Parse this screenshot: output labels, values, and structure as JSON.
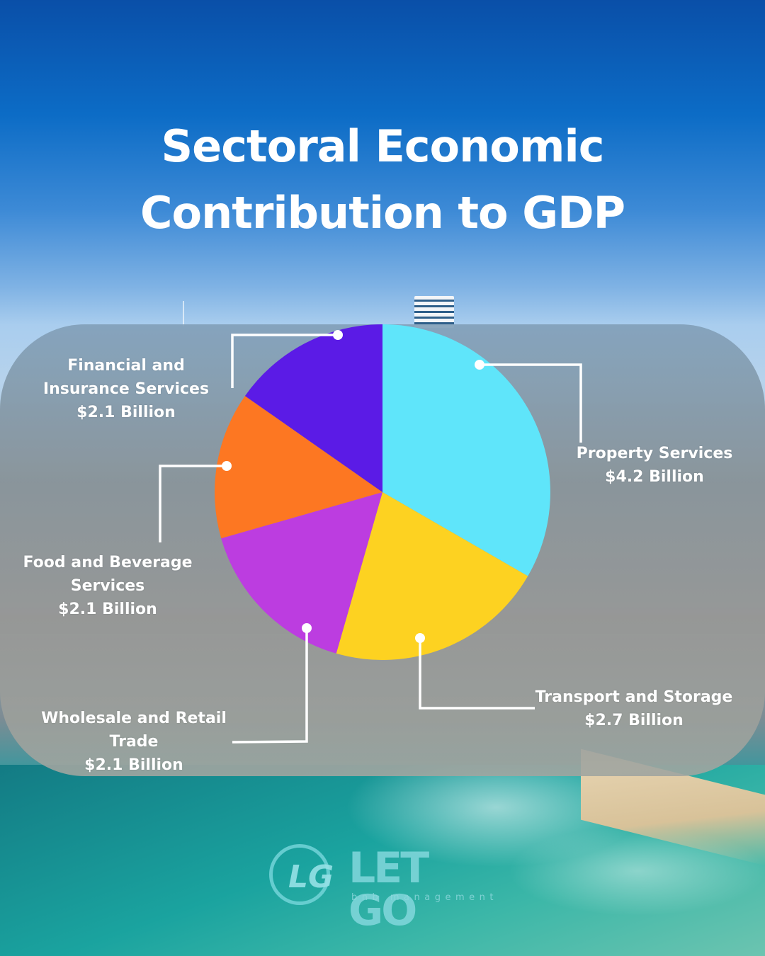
{
  "header": {
    "title_line1": "Sectoral Economic",
    "title_line2": "Contribution to GDP"
  },
  "labels": {
    "property": {
      "name": "Property Services",
      "value": "$4.2 Billion"
    },
    "transport": {
      "name": "Transport and Storage",
      "value": "$2.7 Billion"
    },
    "wholesale": {
      "name_line1": "Wholesale and Retail",
      "name_line2": "Trade",
      "value": "$2.1 Billion"
    },
    "food": {
      "name_line1": "Food and Beverage",
      "name_line2": "Services",
      "value": "$2.1 Billion"
    },
    "financial": {
      "name_line1": "Financial and",
      "name_line2": "Insurance Services",
      "value": "$2.1 Billion"
    }
  },
  "logo": {
    "icon": "lg-monogram-icon",
    "glyph": "LG",
    "name": "LET GO",
    "tagline": "bnb management"
  },
  "colors": {
    "property": "#5fe5fa",
    "transport": "#fdd221",
    "wholesale": "#bc3de0",
    "food": "#fd7722",
    "financial": "#5b1be6"
  },
  "chart_data": {
    "type": "pie",
    "title": "Sectoral Economic Contribution to GDP",
    "categories": [
      "Property Services",
      "Transport and Storage",
      "Wholesale and Retail Trade",
      "Food and Beverage Services",
      "Financial and Insurance Services"
    ],
    "values": [
      4.2,
      2.7,
      2.1,
      2.1,
      2.1
    ],
    "unit": "Billion USD ($)",
    "value_labels": [
      "$4.2 Billion",
      "$2.7 Billion",
      "$2.1 Billion",
      "$2.1 Billion",
      "$2.1 Billion"
    ],
    "colors": [
      "#5fe5fa",
      "#fdd221",
      "#bc3de0",
      "#fd7722",
      "#5b1be6"
    ],
    "start_angle": "12 o'clock, clockwise",
    "legend": "callout labels with leader lines"
  }
}
